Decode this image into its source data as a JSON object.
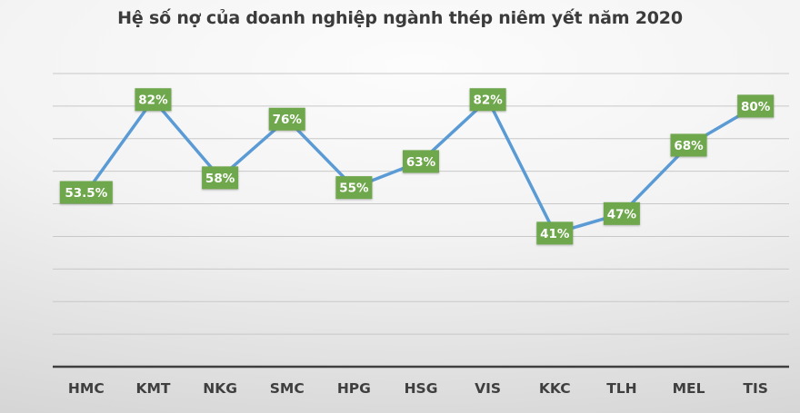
{
  "colors": {
    "line": "#5B9BD5",
    "label_bg": "#6FA84C",
    "label_text": "#FFFFFF",
    "gridline": "#C8C8C8",
    "axis": "#3F3F3F",
    "title_text": "#3B3B3B",
    "category_text": "#3F3F3F"
  },
  "chart_data": {
    "type": "line",
    "title": "Hệ số nợ của doanh nghiệp ngành thép niêm yết năm 2020",
    "categories": [
      "HMC",
      "KMT",
      "NKG",
      "SMC",
      "HPG",
      "HSG",
      "VIS",
      "KKC",
      "TLH",
      "MEL",
      "TIS"
    ],
    "values": [
      53.5,
      82,
      58,
      76,
      55,
      63,
      82,
      41,
      47,
      68,
      80
    ],
    "data_labels": [
      "53.5%",
      "82%",
      "58%",
      "76%",
      "55%",
      "63%",
      "82%",
      "41%",
      "47%",
      "68%",
      "80%"
    ],
    "xlabel": "",
    "ylabel": "",
    "ylim": [
      0,
      90
    ],
    "gridline_percents": [
      10,
      20,
      30,
      40,
      50,
      60,
      70,
      80,
      90
    ],
    "grid": "horizontal",
    "legend": "none",
    "data_label_position": "center"
  }
}
